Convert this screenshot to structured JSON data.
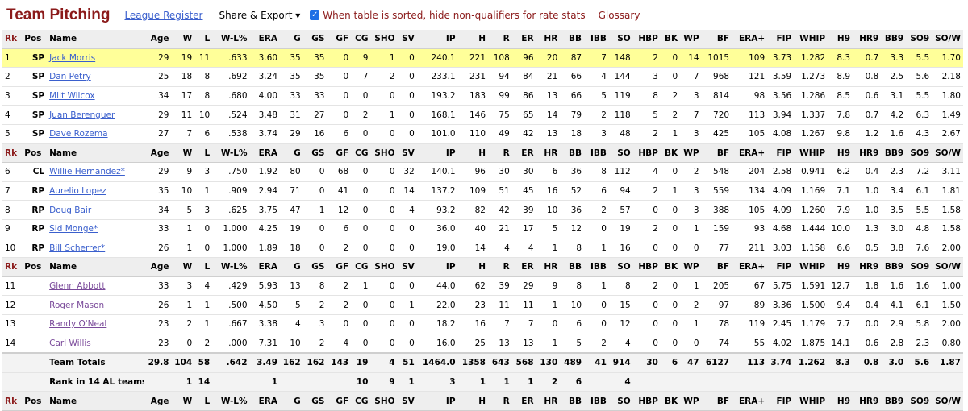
{
  "header": {
    "title": "Team Pitching",
    "league_register": "League Register",
    "share_export": "Share & Export ▾",
    "checkbox_label": "When table is sorted, hide non-qualifiers for rate stats",
    "checkbox_checked": true,
    "glossary": "Glossary"
  },
  "table": {
    "columns": [
      "Rk",
      "Pos",
      "Name",
      "Age",
      "W",
      "L",
      "W-L%",
      "ERA",
      "G",
      "GS",
      "GF",
      "CG",
      "SHO",
      "SV",
      "IP",
      "H",
      "R",
      "ER",
      "HR",
      "BB",
      "IBB",
      "SO",
      "HBP",
      "BK",
      "WP",
      "BF",
      "ERA+",
      "FIP",
      "WHIP",
      "H9",
      "HR9",
      "BB9",
      "SO9",
      "SO/W"
    ],
    "groups": [
      {
        "rows": [
          [
            "1",
            "SP",
            "Jack Morris",
            "29",
            "19",
            "11",
            ".633",
            "3.60",
            "35",
            "35",
            "0",
            "9",
            "1",
            "0",
            "240.1",
            "221",
            "108",
            "96",
            "20",
            "87",
            "7",
            "148",
            "2",
            "0",
            "14",
            "1015",
            "109",
            "3.73",
            "1.282",
            "8.3",
            "0.7",
            "3.3",
            "5.5",
            "1.70"
          ],
          [
            "2",
            "SP",
            "Dan Petry",
            "25",
            "18",
            "8",
            ".692",
            "3.24",
            "35",
            "35",
            "0",
            "7",
            "2",
            "0",
            "233.1",
            "231",
            "94",
            "84",
            "21",
            "66",
            "4",
            "144",
            "3",
            "0",
            "7",
            "968",
            "121",
            "3.59",
            "1.273",
            "8.9",
            "0.8",
            "2.5",
            "5.6",
            "2.18"
          ],
          [
            "3",
            "SP",
            "Milt Wilcox",
            "34",
            "17",
            "8",
            ".680",
            "4.00",
            "33",
            "33",
            "0",
            "0",
            "0",
            "0",
            "193.2",
            "183",
            "99",
            "86",
            "13",
            "66",
            "5",
            "119",
            "8",
            "2",
            "3",
            "814",
            "98",
            "3.56",
            "1.286",
            "8.5",
            "0.6",
            "3.1",
            "5.5",
            "1.80"
          ],
          [
            "4",
            "SP",
            "Juan Berenguer",
            "29",
            "11",
            "10",
            ".524",
            "3.48",
            "31",
            "27",
            "0",
            "2",
            "1",
            "0",
            "168.1",
            "146",
            "75",
            "65",
            "14",
            "79",
            "2",
            "118",
            "5",
            "2",
            "7",
            "720",
            "113",
            "3.94",
            "1.337",
            "7.8",
            "0.7",
            "4.2",
            "6.3",
            "1.49"
          ],
          [
            "5",
            "SP",
            "Dave Rozema",
            "27",
            "7",
            "6",
            ".538",
            "3.74",
            "29",
            "16",
            "6",
            "0",
            "0",
            "0",
            "101.0",
            "110",
            "49",
            "42",
            "13",
            "18",
            "3",
            "48",
            "2",
            "1",
            "3",
            "425",
            "105",
            "4.08",
            "1.267",
            "9.8",
            "1.2",
            "1.6",
            "4.3",
            "2.67"
          ]
        ]
      },
      {
        "rows": [
          [
            "6",
            "CL",
            "Willie Hernandez*",
            "29",
            "9",
            "3",
            ".750",
            "1.92",
            "80",
            "0",
            "68",
            "0",
            "0",
            "32",
            "140.1",
            "96",
            "30",
            "30",
            "6",
            "36",
            "8",
            "112",
            "4",
            "0",
            "2",
            "548",
            "204",
            "2.58",
            "0.941",
            "6.2",
            "0.4",
            "2.3",
            "7.2",
            "3.11"
          ],
          [
            "7",
            "RP",
            "Aurelio Lopez",
            "35",
            "10",
            "1",
            ".909",
            "2.94",
            "71",
            "0",
            "41",
            "0",
            "0",
            "14",
            "137.2",
            "109",
            "51",
            "45",
            "16",
            "52",
            "6",
            "94",
            "2",
            "1",
            "3",
            "559",
            "134",
            "4.09",
            "1.169",
            "7.1",
            "1.0",
            "3.4",
            "6.1",
            "1.81"
          ],
          [
            "8",
            "RP",
            "Doug Bair",
            "34",
            "5",
            "3",
            ".625",
            "3.75",
            "47",
            "1",
            "12",
            "0",
            "0",
            "4",
            "93.2",
            "82",
            "42",
            "39",
            "10",
            "36",
            "2",
            "57",
            "0",
            "0",
            "3",
            "388",
            "105",
            "4.09",
            "1.260",
            "7.9",
            "1.0",
            "3.5",
            "5.5",
            "1.58"
          ],
          [
            "9",
            "RP",
            "Sid Monge*",
            "33",
            "1",
            "0",
            "1.000",
            "4.25",
            "19",
            "0",
            "6",
            "0",
            "0",
            "0",
            "36.0",
            "40",
            "21",
            "17",
            "5",
            "12",
            "0",
            "19",
            "2",
            "0",
            "1",
            "159",
            "93",
            "4.68",
            "1.444",
            "10.0",
            "1.3",
            "3.0",
            "4.8",
            "1.58"
          ],
          [
            "10",
            "RP",
            "Bill Scherrer*",
            "26",
            "1",
            "0",
            "1.000",
            "1.89",
            "18",
            "0",
            "2",
            "0",
            "0",
            "0",
            "19.0",
            "14",
            "4",
            "4",
            "1",
            "8",
            "1",
            "16",
            "0",
            "0",
            "0",
            "77",
            "211",
            "3.03",
            "1.158",
            "6.6",
            "0.5",
            "3.8",
            "7.6",
            "2.00"
          ]
        ]
      },
      {
        "rows": [
          [
            "11",
            "",
            "Glenn Abbott",
            "33",
            "3",
            "4",
            ".429",
            "5.93",
            "13",
            "8",
            "2",
            "1",
            "0",
            "0",
            "44.0",
            "62",
            "39",
            "29",
            "9",
            "8",
            "1",
            "8",
            "2",
            "0",
            "1",
            "205",
            "67",
            "5.75",
            "1.591",
            "12.7",
            "1.8",
            "1.6",
            "1.6",
            "1.00"
          ],
          [
            "12",
            "",
            "Roger Mason",
            "26",
            "1",
            "1",
            ".500",
            "4.50",
            "5",
            "2",
            "2",
            "0",
            "0",
            "1",
            "22.0",
            "23",
            "11",
            "11",
            "1",
            "10",
            "0",
            "15",
            "0",
            "0",
            "2",
            "97",
            "89",
            "3.36",
            "1.500",
            "9.4",
            "0.4",
            "4.1",
            "6.1",
            "1.50"
          ],
          [
            "13",
            "",
            "Randy O'Neal",
            "23",
            "2",
            "1",
            ".667",
            "3.38",
            "4",
            "3",
            "0",
            "0",
            "0",
            "0",
            "18.2",
            "16",
            "7",
            "7",
            "0",
            "6",
            "0",
            "12",
            "0",
            "0",
            "1",
            "78",
            "119",
            "2.45",
            "1.179",
            "7.7",
            "0.0",
            "2.9",
            "5.8",
            "2.00"
          ],
          [
            "14",
            "",
            "Carl Willis",
            "23",
            "0",
            "2",
            ".000",
            "7.31",
            "10",
            "2",
            "4",
            "0",
            "0",
            "0",
            "16.0",
            "25",
            "13",
            "13",
            "1",
            "5",
            "2",
            "4",
            "0",
            "0",
            "0",
            "74",
            "55",
            "4.02",
            "1.875",
            "14.1",
            "0.6",
            "2.8",
            "2.3",
            "0.80"
          ]
        ]
      }
    ],
    "totals": [
      "",
      "",
      "Team Totals",
      "29.8",
      "104",
      "58",
      ".642",
      "3.49",
      "162",
      "162",
      "143",
      "19",
      "4",
      "51",
      "1464.0",
      "1358",
      "643",
      "568",
      "130",
      "489",
      "41",
      "914",
      "30",
      "6",
      "47",
      "6127",
      "113",
      "3.74",
      "1.262",
      "8.3",
      "0.8",
      "3.0",
      "5.6",
      "1.87"
    ],
    "rank": [
      "",
      "",
      "Rank in 14 AL teams",
      "",
      "1",
      "14",
      "",
      "1",
      "",
      "",
      "",
      "10",
      "9",
      "1",
      "3",
      "1",
      "1",
      "1",
      "2",
      "6",
      "",
      "4",
      "",
      "",
      "",
      "",
      "",
      "",
      "",
      "",
      "",
      "",
      "",
      ""
    ]
  },
  "colors": {
    "title": "#8b1a1a",
    "link": "#3a5fcd",
    "highlight": "#ffff99",
    "header_bg": "#eeeeee"
  }
}
